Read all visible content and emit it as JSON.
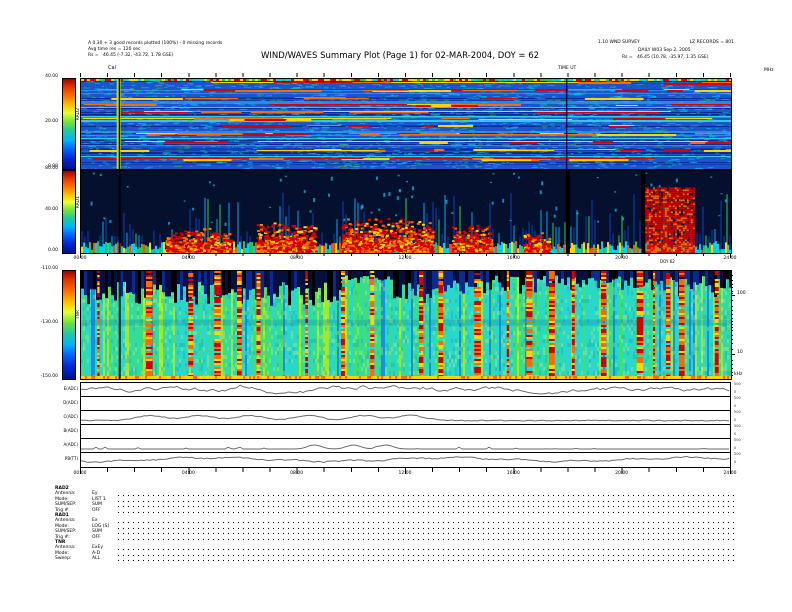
{
  "header": {
    "info_left": [
      "A 0.30 + 3 good records plotted (100%) - 0 missing records",
      "Avg time res = 120 sec",
      "Rs =   46.45 (-7.32, -43.72, 1.78 GSE)"
    ],
    "title": "WIND/WAVES Summary Plot (Page 1) for 02-MAR-2004, DOY = 62",
    "info_right_version": "1.10 WND SURVEY",
    "info_right_lz": "LZ RECORDS = 801",
    "info_right_daily": "DAILY W03 Sep 2, 2005",
    "info_right_rs": "Rs =   46.45 (10.78, -35.97, 1.35 GSE)",
    "cal_label": "Cal"
  },
  "chart_data": {
    "type": "heatmap",
    "time_axis": {
      "ticks": [
        "00:00",
        "04:00",
        "08:00",
        "12:00",
        "16:00",
        "20:00",
        "24:00"
      ],
      "doy_label": "DOY 62",
      "time_label": "TIME UT"
    },
    "panels": [
      {
        "id": "rad2",
        "receiver": "RAD2",
        "unit_right": "MHz",
        "colorbar_ticks": [
          "40.00",
          "20.00",
          "0.00"
        ],
        "colorbar_range": [
          0,
          40
        ],
        "description": "RAD2 radio spectrogram: blue background with horizontal cyan/green banding and red/orange/yellow burst streaks; yellow-green calibration stripe with black line near 01:20",
        "features": {
          "streak_rows": [
            0.04,
            0.12,
            0.2,
            0.28,
            0.36,
            0.44,
            0.52,
            0.6,
            0.7,
            0.78,
            0.88
          ],
          "cal_x": 0.058,
          "gaps_x": [
            0.746
          ]
        }
      },
      {
        "id": "rad1",
        "receiver": "RAD1",
        "colorbar_ticks": [
          "80.00",
          "40.00",
          "0.00"
        ],
        "colorbar_range": [
          0,
          80
        ],
        "description": "RAD1 radio spectrogram: dark blue/black background, cyan-green vertical streaks rising from the bottom edge, intense red patches near the bottom around mid-day and a tall red burst column near 21:00-23:00, black data-gap lines near 18:00 and 20:45",
        "features": {
          "cal_x": 0.058,
          "gaps_x": [
            0.746,
            0.862
          ],
          "blobs": [
            {
              "x": 0.18,
              "w": 0.1,
              "h": 0.3
            },
            {
              "x": 0.315,
              "w": 0.09,
              "h": 0.38
            },
            {
              "x": 0.47,
              "w": 0.14,
              "h": 0.42
            },
            {
              "x": 0.6,
              "w": 0.06,
              "h": 0.34
            },
            {
              "x": 0.7,
              "w": 0.04,
              "h": 0.25
            }
          ],
          "red_column": {
            "x": 0.905,
            "w": 0.075,
            "h": 0.8
          }
        }
      },
      {
        "id": "tnr",
        "receiver": "TNR",
        "right_unit": "kHz",
        "colorbar_ticks": [
          "-110.00",
          "-130.00",
          "-150.00"
        ],
        "colorbar_range": [
          -150,
          -110
        ],
        "right_ticks": [
          {
            "label": "100",
            "frac": 0.23
          },
          {
            "label": "10",
            "frac": 0.78
          }
        ],
        "right_minor_fracs": [
          0.05,
          0.09,
          0.13,
          0.16,
          0.19,
          0.21,
          0.28,
          0.33,
          0.37,
          0.41,
          0.44,
          0.47,
          0.5,
          0.53,
          0.56,
          0.6,
          0.64,
          0.68,
          0.73,
          0.83,
          0.87,
          0.91,
          0.94,
          0.97
        ],
        "description": "TNR thermal noise spectrogram: cyan/green background with many vertical yellow-orange-red streaks, dark navy band across the top, bright yellow line along the bottom",
        "features": {
          "cal_x": 0.058,
          "streaks_x": [
            0.025,
            0.1,
            0.165,
            0.205,
            0.24,
            0.27,
            0.345,
            0.4,
            0.445,
            0.52,
            0.55,
            0.605,
            0.655,
            0.685,
            0.72,
            0.755,
            0.8,
            0.855,
            0.88,
            0.9,
            0.92,
            0.975
          ],
          "dark_band_h": 0.28
        }
      }
    ],
    "strips": {
      "rows": [
        {
          "label": "E(ADC)",
          "style": "noisy"
        },
        {
          "label": "D(ADC)",
          "style": "none"
        },
        {
          "label": "C(ADC)",
          "style": "bumps"
        },
        {
          "label": "B(ADC)",
          "style": "none"
        },
        {
          "label": "A(ADC)",
          "style": "sparse"
        },
        {
          "label": "PB(TT)",
          "style": "wiggle"
        }
      ],
      "right_axis_top": "500",
      "right_axis_bottom": "0"
    }
  },
  "legend": {
    "sections": [
      {
        "name": "RAD2",
        "rows": [
          [
            "Antenna:",
            "Ey"
          ],
          [
            "Mode:",
            "LIST 1"
          ],
          [
            "SUM/SEP:",
            "SUM"
          ],
          [
            "Trig #:",
            "OFF"
          ]
        ]
      },
      {
        "name": "RAD1",
        "rows": [
          [
            "Antenna:",
            "Ex"
          ],
          [
            "Mode:",
            "LOG (S)"
          ],
          [
            "SUM/SEP:",
            "SUM"
          ],
          [
            "Trig #:",
            "OFF"
          ]
        ]
      },
      {
        "name": "TNR",
        "rows": [
          [
            "Antenna:",
            "ExEy"
          ],
          [
            "Mode:",
            "A-D"
          ],
          [
            "Sweep:",
            "ALL"
          ]
        ]
      }
    ]
  }
}
